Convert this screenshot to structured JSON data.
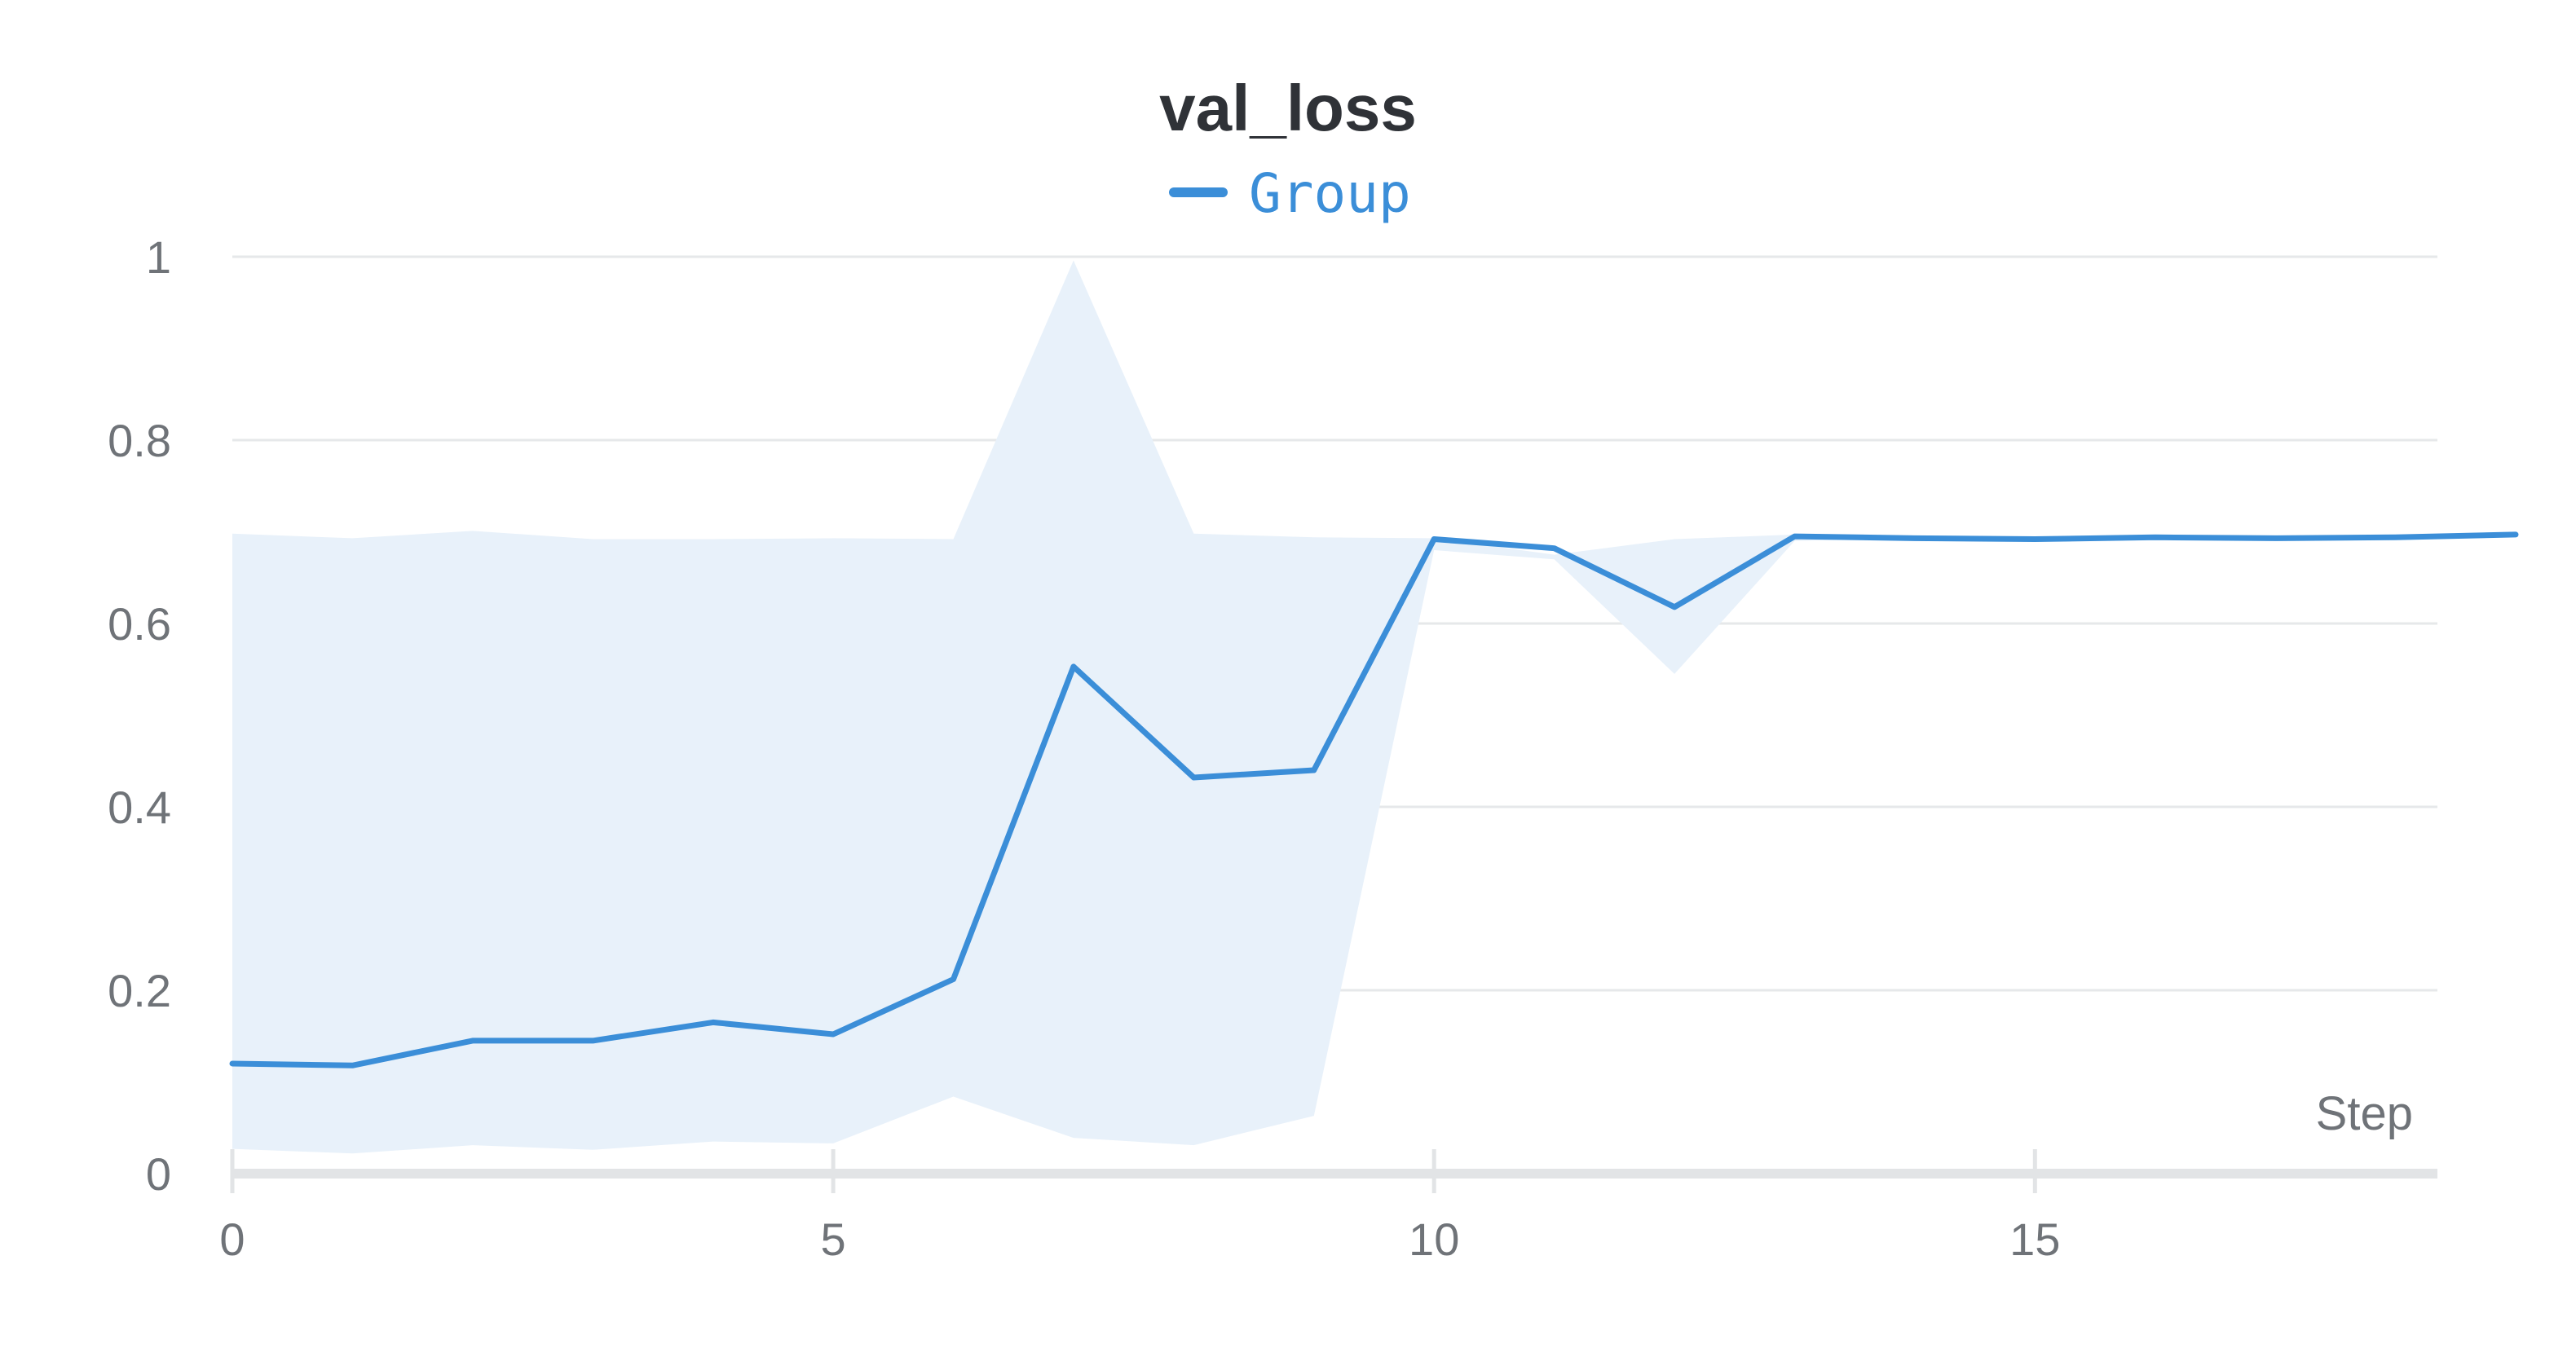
{
  "chart_data": {
    "type": "line",
    "title": "val_loss",
    "xlabel": "Step",
    "ylabel": "",
    "xlim": [
      0,
      19
    ],
    "ylim": [
      0,
      1
    ],
    "x_ticks": [
      0,
      5,
      10,
      15
    ],
    "y_ticks": [
      0,
      0.2,
      0.4,
      0.6,
      0.8,
      1
    ],
    "y_tick_labels": [
      "0",
      "0.2",
      "0.4",
      "0.6",
      "0.8",
      "1"
    ],
    "grid": true,
    "legend_position": "top-center",
    "series": [
      {
        "name": "Group",
        "color": "#3b8ed8",
        "band_color": "#e8f1fa",
        "x": [
          0,
          1,
          2,
          3,
          4,
          5,
          6,
          7,
          8,
          9,
          10,
          11,
          12,
          13,
          14,
          15,
          16,
          17,
          18,
          19
        ],
        "values": [
          0.12,
          0.118,
          0.145,
          0.145,
          0.165,
          0.152,
          0.212,
          0.553,
          0.432,
          0.44,
          0.692,
          0.682,
          0.618,
          0.695,
          0.693,
          0.692,
          0.694,
          0.693,
          0.694,
          0.697
        ],
        "band_upper": [
          0.698,
          0.693,
          0.701,
          0.692,
          0.692,
          0.693,
          0.692,
          0.996,
          0.698,
          0.694,
          0.693,
          0.675,
          0.692,
          0.697,
          0.694,
          0.693,
          0.694,
          0.693,
          0.695,
          0.697
        ],
        "band_lower": [
          0.027,
          0.022,
          0.031,
          0.026,
          0.035,
          0.033,
          0.084,
          0.039,
          0.031,
          0.063,
          0.68,
          0.67,
          0.545,
          0.69,
          0.693,
          0.692,
          0.694,
          0.693,
          0.694,
          0.697
        ]
      }
    ]
  }
}
